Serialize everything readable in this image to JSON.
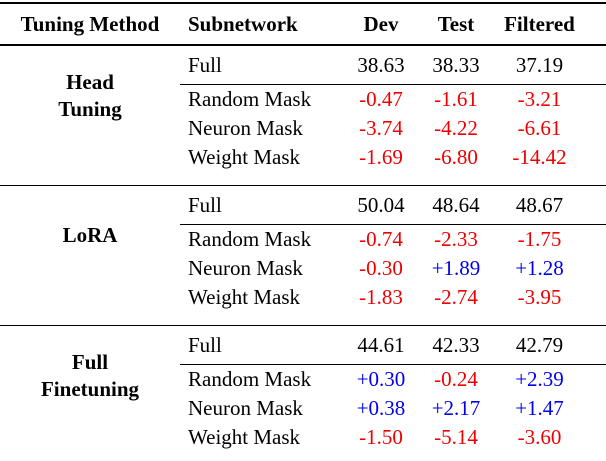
{
  "colors": {
    "negative_delta": "#ee0000",
    "positive_delta": "#0000ee",
    "rule": "#000000",
    "text": "#000000",
    "background": "#ffffff"
  },
  "table": {
    "headers": {
      "method": "Tuning Method",
      "subnetwork": "Subnetwork",
      "dev": "Dev",
      "test": "Test",
      "filtered": "Filtered"
    },
    "groups": [
      {
        "method": "Head\nTuning",
        "rows": [
          {
            "label": "Full",
            "values": [
              "38.63",
              "38.33",
              "37.19"
            ]
          },
          {
            "label": "Random Mask",
            "values": [
              "-0.47",
              "-1.61",
              "-3.21"
            ]
          },
          {
            "label": "Neuron Mask",
            "values": [
              "-3.74",
              "-4.22",
              "-6.61"
            ]
          },
          {
            "label": "Weight Mask",
            "values": [
              "-1.69",
              "-6.80",
              "-14.42"
            ]
          }
        ]
      },
      {
        "method": "LoRA",
        "rows": [
          {
            "label": "Full",
            "values": [
              "50.04",
              "48.64",
              "48.67"
            ]
          },
          {
            "label": "Random Mask",
            "values": [
              "-0.74",
              "-2.33",
              "-1.75"
            ]
          },
          {
            "label": "Neuron Mask",
            "values": [
              "-0.30",
              "+1.89",
              "+1.28"
            ]
          },
          {
            "label": "Weight Mask",
            "values": [
              "-1.83",
              "-2.74",
              "-3.95"
            ]
          }
        ]
      },
      {
        "method": "Full\nFinetuning",
        "rows": [
          {
            "label": "Full",
            "values": [
              "44.61",
              "42.33",
              "42.79"
            ]
          },
          {
            "label": "Random Mask",
            "values": [
              "+0.30",
              "-0.24",
              "+2.39"
            ]
          },
          {
            "label": "Neuron Mask",
            "values": [
              "+0.38",
              "+2.17",
              "+1.47"
            ]
          },
          {
            "label": "Weight Mask",
            "values": [
              "-1.50",
              "-5.14",
              "-3.60"
            ]
          }
        ]
      }
    ]
  }
}
